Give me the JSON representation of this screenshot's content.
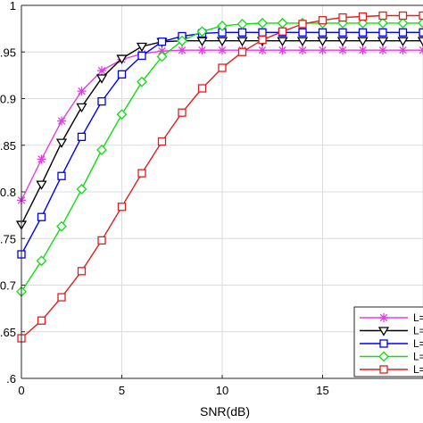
{
  "chart_data": {
    "type": "line",
    "title": "",
    "xlabel": "SNR(dB)",
    "ylabel": "",
    "xlim": [
      0,
      20
    ],
    "ylim": [
      0.6,
      1.0
    ],
    "xticks": [
      0,
      5,
      10,
      15
    ],
    "yticks": [
      0.6,
      0.65,
      0.7,
      0.75,
      0.8,
      0.85,
      0.9,
      0.95,
      1
    ],
    "x_tick_labels": [
      "0",
      "5",
      "10",
      "15"
    ],
    "y_tick_labels": [
      ".6",
      ".65",
      "0.7",
      ".75",
      "0.8",
      ".85",
      "0.9",
      ".95",
      "1"
    ],
    "grid": true,
    "legend_position": "bottom-right",
    "x": [
      0,
      1,
      2,
      3,
      4,
      5,
      6,
      7,
      8,
      9,
      10,
      11,
      12,
      13,
      14,
      15,
      16,
      17,
      18,
      19,
      20
    ],
    "series": [
      {
        "legend_text": "L=",
        "color": "#e040e0",
        "marker": "asterisk",
        "values": [
          0.791,
          0.835,
          0.876,
          0.908,
          0.93,
          0.942,
          0.948,
          0.951,
          0.952,
          0.952,
          0.952,
          0.952,
          0.952,
          0.952,
          0.952,
          0.952,
          0.952,
          0.952,
          0.952,
          0.952,
          0.952
        ]
      },
      {
        "legend_text": "L=",
        "color": "#000000",
        "marker": "triangle-down",
        "values": [
          0.765,
          0.808,
          0.853,
          0.891,
          0.922,
          0.943,
          0.956,
          0.961,
          0.962,
          0.962,
          0.962,
          0.962,
          0.962,
          0.962,
          0.962,
          0.962,
          0.962,
          0.962,
          0.962,
          0.962,
          0.962
        ]
      },
      {
        "legend_text": "L=",
        "color": "#0000ee",
        "marker": "square",
        "values": [
          0.733,
          0.773,
          0.817,
          0.859,
          0.897,
          0.926,
          0.946,
          0.961,
          0.967,
          0.97,
          0.971,
          0.971,
          0.971,
          0.971,
          0.971,
          0.971,
          0.971,
          0.971,
          0.971,
          0.971,
          0.971
        ]
      },
      {
        "legend_text": "L=",
        "color": "#10dd10",
        "marker": "diamond",
        "values": [
          0.693,
          0.726,
          0.763,
          0.803,
          0.845,
          0.883,
          0.918,
          0.945,
          0.962,
          0.972,
          0.978,
          0.98,
          0.981,
          0.981,
          0.981,
          0.981,
          0.981,
          0.981,
          0.981,
          0.981,
          0.981
        ]
      },
      {
        "legend_text": "L=",
        "color": "#dd2020",
        "marker": "square",
        "values": [
          0.643,
          0.662,
          0.687,
          0.715,
          0.748,
          0.784,
          0.82,
          0.854,
          0.885,
          0.911,
          0.933,
          0.95,
          0.963,
          0.972,
          0.98,
          0.984,
          0.987,
          0.988,
          0.989,
          0.989,
          0.989
        ]
      }
    ]
  }
}
